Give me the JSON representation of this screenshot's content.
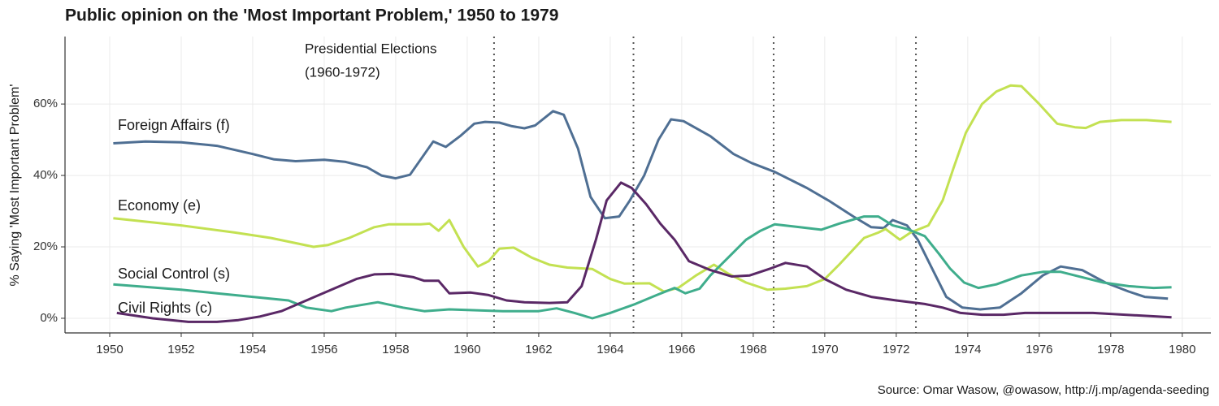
{
  "chart_data": {
    "type": "line",
    "title": "Public opinion on the 'Most Important Problem,' 1950 to 1979",
    "ylabel": "% Saying 'Most Important Problem'",
    "caption": "Source: Omar Wasow, @owasow, http://j.mp/agenda-seeding",
    "annotation": [
      "Presidential Elections",
      "(1960-1972)"
    ],
    "election_lines": [
      1960.75,
      1964.65,
      1968.57,
      1972.55
    ],
    "xlim": [
      1948.75,
      1980.8
    ],
    "ylim": [
      -4.1,
      78.9
    ],
    "xticks": [
      1950,
      1952,
      1954,
      1956,
      1958,
      1960,
      1962,
      1964,
      1966,
      1968,
      1970,
      1972,
      1974,
      1976,
      1978,
      1980
    ],
    "yticks": [
      {
        "value": 0,
        "label": "0%"
      },
      {
        "value": 20,
        "label": "20%"
      },
      {
        "value": 40,
        "label": "40%"
      },
      {
        "value": 60,
        "label": "60%"
      }
    ],
    "grid": true,
    "series": [
      {
        "name": "Foreign Affairs (f)",
        "color": "#4f6f93",
        "x": [
          1950.1,
          1951,
          1952,
          1953,
          1954,
          1954.6,
          1955.2,
          1956,
          1956.6,
          1957.2,
          1957.6,
          1958,
          1958.4,
          1959.05,
          1959.4,
          1959.8,
          1960.2,
          1960.5,
          1960.9,
          1961.25,
          1961.6,
          1961.9,
          1962.4,
          1962.7,
          1963.1,
          1963.45,
          1963.85,
          1964.25,
          1964.55,
          1964.95,
          1965.35,
          1965.7,
          1966.05,
          1966.8,
          1967.45,
          1967.95,
          1968.6,
          1969.5,
          1970.1,
          1970.8,
          1971.3,
          1971.65,
          1971.9,
          1972.3,
          1972.6,
          1973.05,
          1973.4,
          1973.85,
          1974.35,
          1974.9,
          1975.5,
          1976.1,
          1976.6,
          1977.2,
          1977.85,
          1978.5,
          1978.95,
          1979.6
        ],
        "values": [
          49,
          49.5,
          49.3,
          48.3,
          46,
          44.5,
          44,
          44.4,
          43.8,
          42.3,
          40,
          39.2,
          40.2,
          49.5,
          48,
          51,
          54.5,
          55,
          54.8,
          53.8,
          53.2,
          54,
          58,
          57,
          47.5,
          34,
          28,
          28.5,
          33,
          40,
          50,
          55.7,
          55.2,
          51,
          46,
          43.5,
          41,
          36.5,
          33,
          28.5,
          25.5,
          25.3,
          27.5,
          26,
          22,
          13,
          6,
          3,
          2.5,
          3,
          7,
          12,
          14.5,
          13.5,
          10,
          7.5,
          6,
          5.5
        ]
      },
      {
        "name": "Economy (e)",
        "color": "#c3e152",
        "x": [
          1950.1,
          1952,
          1953.5,
          1954.5,
          1955.7,
          1956.1,
          1956.7,
          1957.4,
          1957.8,
          1958.7,
          1958.95,
          1959.2,
          1959.5,
          1959.9,
          1960.3,
          1960.6,
          1960.9,
          1961.3,
          1961.8,
          1962.3,
          1962.8,
          1963.5,
          1964,
          1964.4,
          1965.1,
          1965.5,
          1965.9,
          1966.4,
          1966.9,
          1967.3,
          1967.8,
          1968.4,
          1968.9,
          1969.5,
          1970,
          1970.4,
          1971.1,
          1971.5,
          1971.7,
          1972.1,
          1972.4,
          1972.9,
          1973.3,
          1973.6,
          1973.95,
          1974.4,
          1974.8,
          1975.2,
          1975.5,
          1976,
          1976.5,
          1977,
          1977.3,
          1977.7,
          1978.3,
          1979,
          1979.7
        ],
        "values": [
          28,
          26,
          24,
          22.5,
          20,
          20.5,
          22.5,
          25.5,
          26.3,
          26.3,
          26.5,
          24.5,
          27.5,
          20,
          14.5,
          16,
          19.5,
          19.8,
          17,
          15,
          14.2,
          13.8,
          11,
          9.7,
          9.8,
          7.5,
          8.5,
          12,
          15,
          12.5,
          10,
          8,
          8.3,
          9,
          11,
          15,
          22.5,
          24,
          25,
          22,
          24,
          26,
          33,
          42,
          52,
          60,
          63.5,
          65.2,
          65,
          60,
          54.5,
          53.5,
          53.3,
          55,
          55.5,
          55.5,
          55
        ]
      },
      {
        "name": "Social Control (s)",
        "color": "#3fad8c",
        "x": [
          1950.1,
          1952,
          1953,
          1954,
          1955,
          1955.5,
          1956.2,
          1956.6,
          1957.5,
          1958.2,
          1958.8,
          1959.5,
          1961,
          1962,
          1962.5,
          1963,
          1963.5,
          1964,
          1964.7,
          1965.3,
          1965.8,
          1966.1,
          1966.5,
          1966.8,
          1967.3,
          1967.8,
          1968.2,
          1968.6,
          1969.3,
          1969.9,
          1970.4,
          1971.1,
          1971.5,
          1971.9,
          1972.3,
          1972.8,
          1973.2,
          1973.5,
          1973.9,
          1974.3,
          1974.8,
          1975.5,
          1976.1,
          1976.6,
          1977.2,
          1977.8,
          1978.5,
          1979.2,
          1979.7
        ],
        "values": [
          9.5,
          8,
          7,
          6,
          5,
          3,
          2,
          3,
          4.5,
          3,
          2,
          2.5,
          2,
          2,
          2.8,
          1.5,
          0,
          1.5,
          4,
          6.5,
          8.5,
          7,
          8.3,
          12,
          17,
          22,
          24.5,
          26.3,
          25.5,
          24.8,
          26.5,
          28.5,
          28.5,
          26,
          25,
          23,
          18,
          14,
          10,
          8.5,
          9.5,
          12,
          13,
          13,
          11.5,
          10,
          9,
          8.5,
          8.7
        ]
      },
      {
        "name": "Civil Rights (c)",
        "color": "#5a2866",
        "x": [
          1950.2,
          1951.2,
          1952.2,
          1953,
          1953.6,
          1954.2,
          1954.8,
          1955.5,
          1956.2,
          1956.9,
          1957.4,
          1957.9,
          1958.5,
          1958.8,
          1959.2,
          1959.5,
          1960.1,
          1960.6,
          1961.1,
          1961.6,
          1962.3,
          1962.8,
          1963.2,
          1963.6,
          1963.9,
          1964.3,
          1964.6,
          1965,
          1965.4,
          1965.8,
          1966.2,
          1966.8,
          1967.4,
          1967.9,
          1968.5,
          1968.9,
          1969.5,
          1970,
          1970.6,
          1971.3,
          1972,
          1972.8,
          1973.3,
          1973.8,
          1974.4,
          1975,
          1975.6,
          1976.4,
          1977.5,
          1978.4,
          1979.7
        ],
        "values": [
          1.5,
          0,
          -1,
          -1,
          -0.5,
          0.5,
          2,
          5,
          8,
          11,
          12.3,
          12.4,
          11.5,
          10.5,
          10.5,
          7,
          7.2,
          6.5,
          5,
          4.5,
          4.3,
          4.5,
          9,
          22,
          33,
          38,
          36.5,
          32,
          26.5,
          22,
          16,
          13.5,
          11.7,
          12,
          14,
          15.5,
          14.5,
          11,
          8,
          6,
          5,
          4,
          3,
          1.5,
          1,
          1,
          1.5,
          1.5,
          1.5,
          1,
          0.3
        ]
      }
    ]
  }
}
